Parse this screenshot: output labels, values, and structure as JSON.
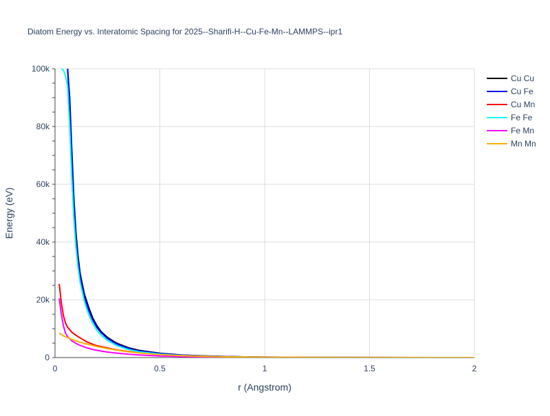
{
  "chart_data": {
    "type": "line",
    "title": "Diatom Energy vs. Interatomic Spacing for 2025--Sharifi-H--Cu-Fe-Mn--LAMMPS--ipr1",
    "xlabel": "r (Angstrom)",
    "ylabel": "Energy (eV)",
    "xlim": [
      0,
      2
    ],
    "ylim": [
      0,
      100000
    ],
    "x_ticks": [
      0,
      0.5,
      1,
      1.5,
      2
    ],
    "x_tick_labels": [
      "0",
      "0.5",
      "1",
      "1.5",
      "2"
    ],
    "y_ticks": [
      0,
      20000,
      40000,
      60000,
      80000,
      100000
    ],
    "y_tick_labels": [
      "0",
      "20k",
      "40k",
      "60k",
      "80k",
      "100k"
    ],
    "grid": true,
    "legend_position": "top-right",
    "series": [
      {
        "name": "Cu Cu",
        "color": "#000000",
        "x": [
          0.06,
          0.07,
          0.08,
          0.09,
          0.1,
          0.11,
          0.12,
          0.14,
          0.16,
          0.18,
          0.2,
          0.22,
          0.25,
          0.28,
          0.3,
          0.35,
          0.4,
          0.5,
          0.6,
          0.7,
          0.8,
          0.9,
          1.0,
          1.2,
          1.4,
          1.6,
          1.8,
          2.0
        ],
        "y": [
          100000,
          90000,
          72000,
          55000,
          43000,
          35000,
          29000,
          22000,
          17500,
          13700,
          11000,
          9000,
          7000,
          5600,
          4800,
          3400,
          2500,
          1500,
          900,
          600,
          400,
          250,
          150,
          80,
          40,
          20,
          10,
          0
        ]
      },
      {
        "name": "Cu Fe",
        "color": "#0000ff",
        "x": [
          0.06,
          0.07,
          0.08,
          0.09,
          0.1,
          0.11,
          0.12,
          0.14,
          0.16,
          0.18,
          0.2,
          0.22,
          0.25,
          0.28,
          0.3,
          0.35,
          0.4,
          0.5,
          0.6,
          0.7,
          0.8,
          0.9,
          1.0,
          1.2,
          1.4,
          1.6,
          1.8,
          2.0
        ],
        "y": [
          100000,
          88000,
          70000,
          53000,
          41000,
          33500,
          28000,
          21000,
          16500,
          13000,
          10400,
          8600,
          6600,
          5300,
          4500,
          3200,
          2300,
          1400,
          850,
          550,
          380,
          230,
          140,
          70,
          35,
          15,
          5,
          0
        ]
      },
      {
        "name": "Cu Mn",
        "color": "#ff0000",
        "x": [
          0.02,
          0.03,
          0.04,
          0.05,
          0.06,
          0.08,
          0.1,
          0.12,
          0.15,
          0.18,
          0.2,
          0.25,
          0.3,
          0.35,
          0.4,
          0.5,
          0.6,
          0.7,
          0.8,
          0.9,
          1.0,
          1.2,
          1.4,
          1.6,
          1.8,
          2.0
        ],
        "y": [
          25500,
          19000,
          14500,
          12000,
          10500,
          8800,
          7700,
          6800,
          5500,
          4600,
          4100,
          3300,
          2600,
          2100,
          1700,
          1100,
          700,
          450,
          300,
          180,
          100,
          50,
          20,
          10,
          5,
          0
        ]
      },
      {
        "name": "Fe Fe",
        "color": "#00ffff",
        "x": [
          0.03,
          0.04,
          0.05,
          0.06,
          0.07,
          0.08,
          0.09,
          0.1,
          0.11,
          0.12,
          0.14,
          0.16,
          0.18,
          0.2,
          0.22,
          0.25,
          0.28,
          0.3,
          0.35,
          0.4,
          0.5,
          0.6,
          0.7,
          0.8,
          0.9,
          1.0,
          1.2,
          1.4,
          1.6,
          1.8,
          2.0
        ],
        "y": [
          100000,
          99500,
          97500,
          94000,
          80000,
          62000,
          48000,
          38000,
          31000,
          26000,
          19500,
          15000,
          11800,
          9400,
          7700,
          5900,
          4700,
          4000,
          2800,
          2000,
          1200,
          700,
          450,
          300,
          180,
          100,
          50,
          20,
          10,
          5,
          0
        ]
      },
      {
        "name": "Fe Mn",
        "color": "#ff00ff",
        "x": [
          0.02,
          0.03,
          0.04,
          0.05,
          0.06,
          0.08,
          0.1,
          0.12,
          0.15,
          0.18,
          0.2,
          0.25,
          0.3,
          0.35,
          0.4,
          0.5,
          0.6,
          0.7,
          0.8,
          0.9,
          1.0,
          1.2,
          1.4,
          1.6,
          1.8,
          2.0
        ],
        "y": [
          20500,
          15000,
          11000,
          8500,
          7200,
          5800,
          4900,
          4200,
          3400,
          2800,
          2500,
          1900,
          1500,
          1150,
          900,
          550,
          350,
          220,
          150,
          100,
          60,
          30,
          15,
          8,
          3,
          0
        ]
      },
      {
        "name": "Mn Mn",
        "color": "#ffb000",
        "x": [
          0.02,
          0.04,
          0.06,
          0.08,
          0.1,
          0.12,
          0.15,
          0.18,
          0.2,
          0.25,
          0.3,
          0.35,
          0.4,
          0.5,
          0.6,
          0.7,
          0.8,
          0.9,
          1.0,
          1.2,
          1.4,
          1.6,
          1.8,
          2.0
        ],
        "y": [
          8500,
          7500,
          6900,
          6300,
          5800,
          5300,
          4700,
          4200,
          3800,
          3100,
          2500,
          2000,
          1600,
          1000,
          650,
          420,
          280,
          170,
          100,
          50,
          20,
          10,
          5,
          0
        ]
      }
    ]
  }
}
